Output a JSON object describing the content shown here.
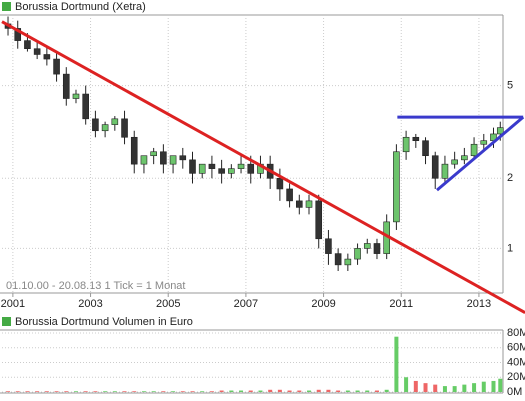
{
  "chart_data": [
    {
      "type": "candlestick",
      "title": "Borussia Dortmund (Xetra)",
      "title_marker_color": "#44aa44",
      "note": "01.10.00 - 20.08.13   1 Tick = 1 Monat",
      "log_scale": true,
      "grid": true,
      "xlim": [
        2000.72,
        2013.62
      ],
      "xticks": [
        2001,
        2003,
        2005,
        2007,
        2009,
        2011,
        2013
      ],
      "ylim": [
        0.65,
        9.85
      ],
      "yticks": [
        1,
        2,
        5
      ],
      "up_color": "#6cc46c",
      "down_color": "#333333",
      "x": [
        2000.875,
        2001.125,
        2001.375,
        2001.625,
        2001.875,
        2002.125,
        2002.375,
        2002.625,
        2002.875,
        2003.125,
        2003.375,
        2003.625,
        2003.875,
        2004.125,
        2004.375,
        2004.625,
        2004.875,
        2005.125,
        2005.375,
        2005.625,
        2005.875,
        2006.125,
        2006.375,
        2006.625,
        2006.875,
        2007.125,
        2007.375,
        2007.625,
        2007.875,
        2008.125,
        2008.375,
        2008.625,
        2008.875,
        2009.125,
        2009.375,
        2009.625,
        2009.875,
        2010.125,
        2010.375,
        2010.625,
        2010.875,
        2011.125,
        2011.375,
        2011.625,
        2011.875,
        2012.125,
        2012.375,
        2012.625,
        2012.875,
        2013.125,
        2013.375,
        2013.55
      ],
      "open": [
        9.2,
        8.8,
        7.8,
        7.2,
        6.8,
        6.5,
        5.6,
        4.4,
        4.6,
        3.6,
        3.2,
        3.4,
        3.6,
        3.0,
        2.3,
        2.5,
        2.6,
        2.3,
        2.5,
        2.4,
        2.1,
        2.3,
        2.2,
        2.1,
        2.2,
        2.3,
        2.1,
        2.3,
        2.0,
        1.8,
        1.6,
        1.5,
        1.6,
        1.1,
        0.95,
        0.85,
        0.9,
        1.0,
        1.05,
        0.95,
        1.3,
        2.6,
        3.0,
        2.9,
        2.5,
        2.0,
        2.3,
        2.4,
        2.5,
        2.8,
        2.9,
        3.1
      ],
      "high": [
        9.9,
        9.5,
        8.4,
        7.8,
        7.3,
        7.0,
        6.0,
        4.8,
        5.0,
        3.9,
        3.5,
        3.7,
        3.9,
        3.2,
        2.5,
        2.7,
        2.8,
        2.5,
        2.7,
        2.6,
        2.3,
        2.5,
        2.4,
        2.3,
        2.5,
        2.5,
        2.5,
        2.5,
        2.2,
        1.9,
        1.7,
        1.7,
        1.7,
        1.2,
        1.0,
        0.95,
        1.05,
        1.1,
        1.1,
        1.4,
        2.8,
        3.2,
        3.1,
        3.0,
        2.6,
        2.5,
        2.6,
        2.7,
        3.0,
        3.1,
        3.3,
        3.5
      ],
      "low": [
        8.2,
        7.2,
        7.0,
        6.5,
        6.1,
        5.2,
        4.1,
        4.2,
        3.4,
        3.0,
        3.0,
        3.2,
        2.8,
        2.1,
        2.1,
        2.3,
        2.1,
        2.1,
        2.2,
        1.9,
        2.0,
        2.0,
        1.9,
        2.0,
        2.1,
        1.9,
        2.0,
        1.8,
        1.6,
        1.5,
        1.4,
        1.4,
        1.0,
        0.85,
        0.8,
        0.8,
        0.85,
        0.95,
        0.9,
        0.9,
        1.2,
        2.4,
        2.7,
        2.3,
        1.8,
        1.9,
        2.2,
        2.3,
        2.4,
        2.6,
        2.7,
        2.9
      ],
      "close": [
        8.8,
        7.8,
        7.2,
        6.8,
        6.5,
        5.6,
        4.4,
        4.6,
        3.6,
        3.2,
        3.4,
        3.6,
        3.0,
        2.3,
        2.5,
        2.6,
        2.3,
        2.5,
        2.4,
        2.1,
        2.3,
        2.2,
        2.1,
        2.2,
        2.3,
        2.1,
        2.3,
        2.0,
        1.8,
        1.6,
        1.5,
        1.6,
        1.1,
        0.95,
        0.85,
        0.9,
        1.0,
        1.05,
        0.95,
        1.3,
        2.6,
        3.0,
        2.9,
        2.5,
        2.0,
        2.3,
        2.4,
        2.5,
        2.8,
        2.9,
        3.1,
        3.3
      ],
      "lines": [
        {
          "color": "#dd2222",
          "points": [
            [
              2000.72,
              9.4
            ],
            [
              2014.19,
              0.53
            ]
          ]
        },
        {
          "color": "#3a3acc",
          "points": [
            [
              2010.9,
              3.66
            ],
            [
              2014.14,
              3.66
            ]
          ]
        },
        {
          "color": "#3a3acc",
          "points": [
            [
              2011.92,
              1.78
            ],
            [
              2014.14,
              3.66
            ]
          ]
        }
      ]
    },
    {
      "type": "bar",
      "title": "Borussia Dortmund Volumen in Euro",
      "title_marker_color": "#44aa44",
      "xlim": [
        2000.72,
        2013.62
      ],
      "ylim": [
        0,
        80
      ],
      "yticks": [
        {
          "value": 0,
          "label": "0M"
        },
        {
          "value": 20,
          "label": "20M"
        },
        {
          "value": 40,
          "label": "40M"
        },
        {
          "value": 60,
          "label": "60M"
        },
        {
          "value": 80,
          "label": "80M"
        }
      ],
      "up_color": "#66cc66",
      "down_color": "#ee6666",
      "x": [
        2000.875,
        2001.125,
        2001.375,
        2001.625,
        2001.875,
        2002.125,
        2002.375,
        2002.625,
        2002.875,
        2003.125,
        2003.375,
        2003.625,
        2003.875,
        2004.125,
        2004.375,
        2004.625,
        2004.875,
        2005.125,
        2005.375,
        2005.625,
        2005.875,
        2006.125,
        2006.375,
        2006.625,
        2006.875,
        2007.125,
        2007.375,
        2007.625,
        2007.875,
        2008.125,
        2008.375,
        2008.625,
        2008.875,
        2009.125,
        2009.375,
        2009.625,
        2009.875,
        2010.125,
        2010.375,
        2010.625,
        2010.875,
        2011.125,
        2011.375,
        2011.625,
        2011.875,
        2012.125,
        2012.375,
        2012.625,
        2012.875,
        2013.125,
        2013.375,
        2013.55
      ],
      "values": [
        1,
        1,
        1,
        1,
        1,
        1,
        1,
        1,
        1,
        1,
        1,
        1,
        1,
        1,
        1,
        1,
        1,
        1,
        1,
        1,
        1,
        1,
        2,
        2,
        2,
        2,
        2,
        3,
        3,
        2,
        2,
        2,
        3,
        3,
        2,
        2,
        2,
        2,
        2,
        3,
        75,
        20,
        15,
        12,
        10,
        8,
        8,
        10,
        12,
        14,
        15,
        18
      ]
    }
  ]
}
